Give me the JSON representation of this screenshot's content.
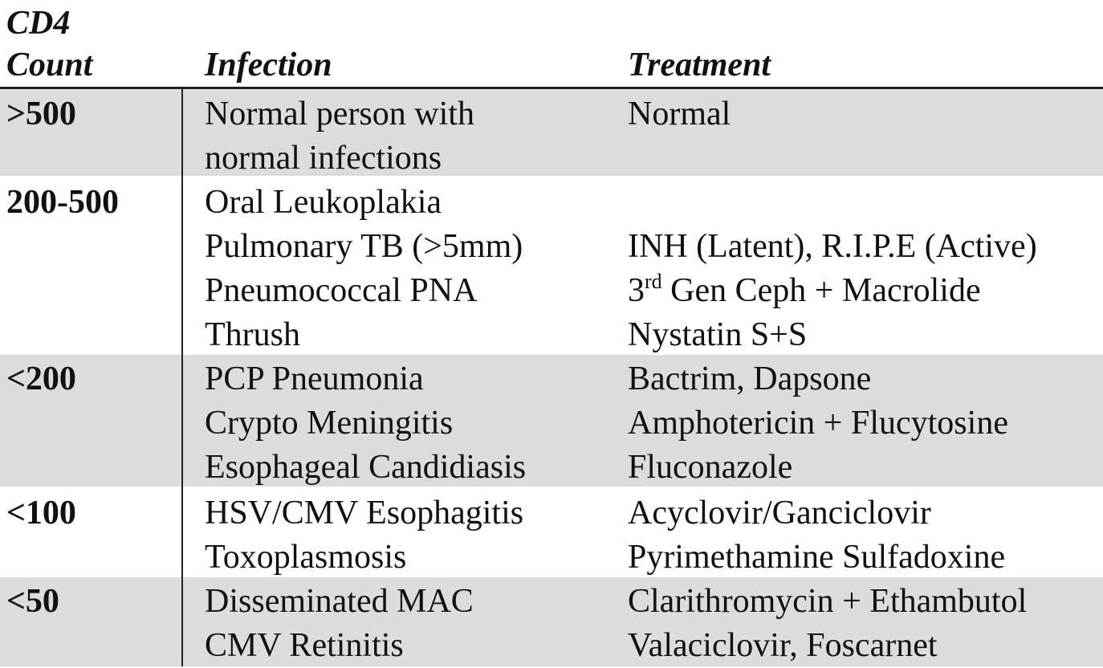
{
  "header": {
    "count_line1": "CD4",
    "count_line2": "Count",
    "infection": "Infection",
    "treatment": "Treatment"
  },
  "rows": [
    {
      "count": ">500",
      "infections": [
        "Normal person with",
        "normal infections"
      ],
      "treatments": [
        "Normal",
        ""
      ]
    },
    {
      "count": "200-500",
      "infections": [
        "Oral Leukoplakia",
        "Pulmonary TB (>5mm)",
        "Pneumococcal PNA",
        "Thrush"
      ],
      "treatments": [
        "",
        "INH (Latent), R.I.P.E (Active)",
        "3rd Gen Ceph + Macrolide",
        "Nystatin S+S"
      ],
      "treatment_parts": {
        "ordinal_num": "3",
        "ordinal_sup": "rd",
        "ordinal_rest": " Gen Ceph + Macrolide"
      }
    },
    {
      "count": "<200",
      "infections": [
        "PCP Pneumonia",
        "Crypto Meningitis",
        "Esophageal Candidiasis"
      ],
      "treatments": [
        "Bactrim, Dapsone",
        "Amphotericin + Flucytosine",
        "Fluconazole"
      ]
    },
    {
      "count": "<100",
      "infections": [
        "HSV/CMV Esophagitis",
        "Toxoplasmosis"
      ],
      "treatments": [
        "Acyclovir/Ganciclovir",
        "Pyrimethamine Sulfadoxine"
      ]
    },
    {
      "count": "<50",
      "infections": [
        "Disseminated MAC",
        "CMV Retinitis"
      ],
      "treatments": [
        "Clarithromycin + Ethambutol",
        "Valaciclovir, Foscarnet"
      ]
    }
  ],
  "colors": {
    "shaded_row": "#dcdcdc",
    "rule": "#222222",
    "text": "#111111"
  }
}
